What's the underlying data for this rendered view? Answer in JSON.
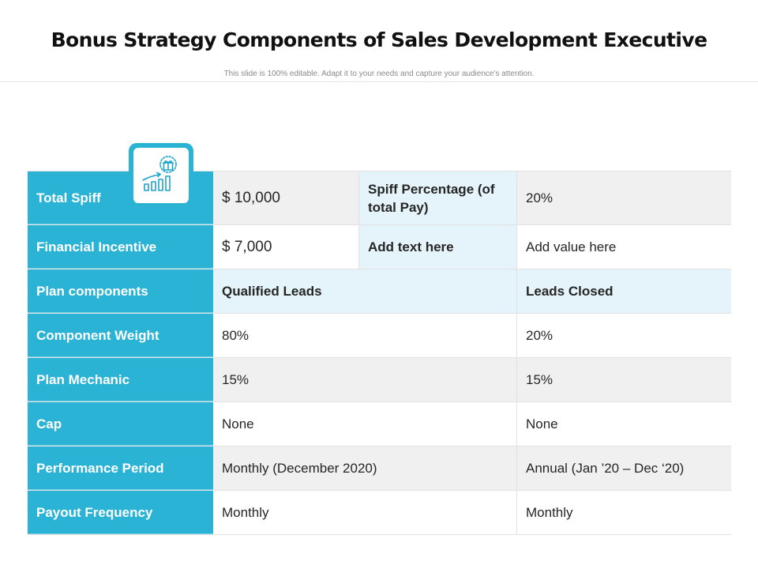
{
  "header": {
    "title": "Bonus Strategy Components of Sales Development Executive",
    "subtitle": "This slide is 100% editable. Adapt it to your needs and capture your audience’s attention."
  },
  "icon": {
    "name": "growth-chart-gift-icon"
  },
  "colors": {
    "accent": "#2bb3d6",
    "light_accent": "#e5f4fa",
    "gray_row": "#f0f0f0"
  },
  "table": {
    "total_spiff": {
      "label": "Total Spiff",
      "value": "$ 10,000",
      "sub_label": "Spiff Percentage (of total Pay)",
      "sub_value": "20%"
    },
    "financial_incentive": {
      "label": "Financial Incentive",
      "value": "$ 7,000",
      "sub_label": "Add text here",
      "sub_value": "Add value here"
    },
    "plan_components": {
      "label": "Plan components",
      "col1": "Qualified Leads",
      "col2": "Leads Closed"
    },
    "component_weight": {
      "label": "Component Weight",
      "col1": "80%",
      "col2": "20%"
    },
    "plan_mechanic": {
      "label": "Plan Mechanic",
      "col1": "15%",
      "col2": "15%"
    },
    "cap": {
      "label": "Cap",
      "col1": "None",
      "col2": "None"
    },
    "performance_period": {
      "label": "Performance Period",
      "col1": "Monthly (December 2020)",
      "col2": "Annual (Jan ’20 – Dec ‘20)"
    },
    "payout_frequency": {
      "label": "Payout Frequency",
      "col1": "Monthly",
      "col2": "Monthly"
    }
  }
}
